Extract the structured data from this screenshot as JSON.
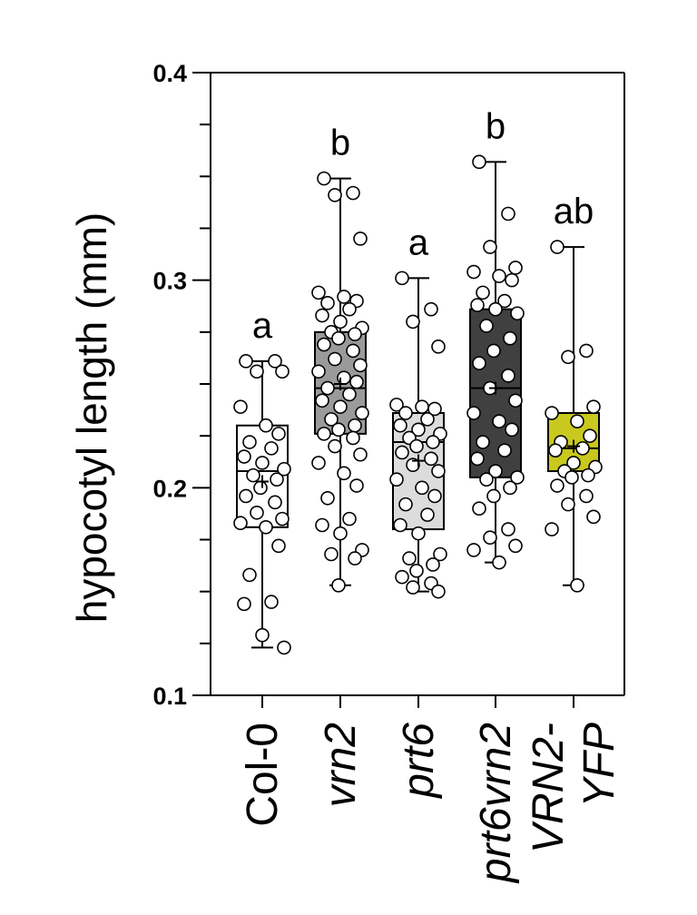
{
  "chart_data": {
    "type": "box",
    "title": "",
    "ylabel": "hypocotyl length (mm)",
    "ylim": [
      0.1,
      0.4
    ],
    "yticks": [
      "0.1",
      "0.2",
      "0.3",
      "0.4"
    ],
    "grid": false,
    "legend": "none",
    "categories": [
      "Col-0",
      "vrn2",
      "prt6",
      "prt6vrn2",
      "VRN2-\nYFP"
    ],
    "category_lines": [
      [
        "Col-0"
      ],
      [
        "vrn2"
      ],
      [
        "prt6"
      ],
      [
        "prt6vrn2"
      ],
      [
        "VRN2-",
        "YFP"
      ]
    ],
    "category_italic": [
      false,
      true,
      true,
      true,
      true
    ],
    "groups": [
      {
        "name": "Col-0",
        "letter": "a",
        "color": "#ffffff",
        "min": 0.123,
        "q1": 0.181,
        "median": 0.208,
        "q3": 0.23,
        "max": 0.261,
        "mean": 0.203,
        "points": [
          0.261,
          0.261,
          0.256,
          0.256,
          0.239,
          0.23,
          0.226,
          0.222,
          0.219,
          0.215,
          0.212,
          0.209,
          0.206,
          0.204,
          0.2,
          0.196,
          0.193,
          0.188,
          0.185,
          0.183,
          0.181,
          0.172,
          0.158,
          0.145,
          0.144,
          0.129,
          0.123
        ]
      },
      {
        "name": "vrn2",
        "letter": "b",
        "color": "#9a9a9a",
        "min": 0.153,
        "q1": 0.226,
        "median": 0.248,
        "q3": 0.275,
        "max": 0.349,
        "mean": 0.25,
        "points": [
          0.349,
          0.342,
          0.341,
          0.32,
          0.294,
          0.292,
          0.29,
          0.289,
          0.286,
          0.283,
          0.28,
          0.277,
          0.275,
          0.274,
          0.272,
          0.269,
          0.266,
          0.262,
          0.259,
          0.256,
          0.253,
          0.251,
          0.248,
          0.245,
          0.242,
          0.239,
          0.236,
          0.233,
          0.23,
          0.228,
          0.226,
          0.224,
          0.22,
          0.216,
          0.212,
          0.207,
          0.201,
          0.195,
          0.185,
          0.182,
          0.178,
          0.17,
          0.168,
          0.166,
          0.153
        ]
      },
      {
        "name": "prt6",
        "letter": "a",
        "color": "#dcdcdc",
        "min": 0.15,
        "q1": 0.18,
        "median": 0.222,
        "q3": 0.236,
        "max": 0.301,
        "mean": 0.213,
        "points": [
          0.301,
          0.286,
          0.28,
          0.268,
          0.24,
          0.239,
          0.238,
          0.236,
          0.233,
          0.23,
          0.228,
          0.226,
          0.224,
          0.222,
          0.22,
          0.217,
          0.214,
          0.211,
          0.208,
          0.204,
          0.2,
          0.196,
          0.192,
          0.187,
          0.182,
          0.178,
          0.168,
          0.166,
          0.163,
          0.16,
          0.157,
          0.154,
          0.152,
          0.15
        ]
      },
      {
        "name": "prt6vrn2",
        "letter": "b",
        "color": "#404040",
        "min": 0.164,
        "q1": 0.205,
        "median": 0.248,
        "q3": 0.286,
        "max": 0.357,
        "mean": 0.248,
        "points": [
          0.357,
          0.332,
          0.316,
          0.306,
          0.304,
          0.302,
          0.3,
          0.294,
          0.29,
          0.288,
          0.286,
          0.284,
          0.278,
          0.272,
          0.266,
          0.26,
          0.254,
          0.248,
          0.242,
          0.236,
          0.232,
          0.228,
          0.222,
          0.218,
          0.214,
          0.208,
          0.205,
          0.204,
          0.2,
          0.196,
          0.19,
          0.18,
          0.176,
          0.172,
          0.17,
          0.164
        ]
      },
      {
        "name": "VRN2-YFP",
        "letter": "ab",
        "color": "#c8c81e",
        "min": 0.153,
        "q1": 0.208,
        "median": 0.219,
        "q3": 0.236,
        "max": 0.316,
        "mean": 0.22,
        "points": [
          0.316,
          0.266,
          0.263,
          0.239,
          0.236,
          0.232,
          0.225,
          0.222,
          0.219,
          0.218,
          0.212,
          0.21,
          0.208,
          0.206,
          0.205,
          0.201,
          0.196,
          0.192,
          0.186,
          0.18,
          0.153
        ]
      }
    ]
  }
}
